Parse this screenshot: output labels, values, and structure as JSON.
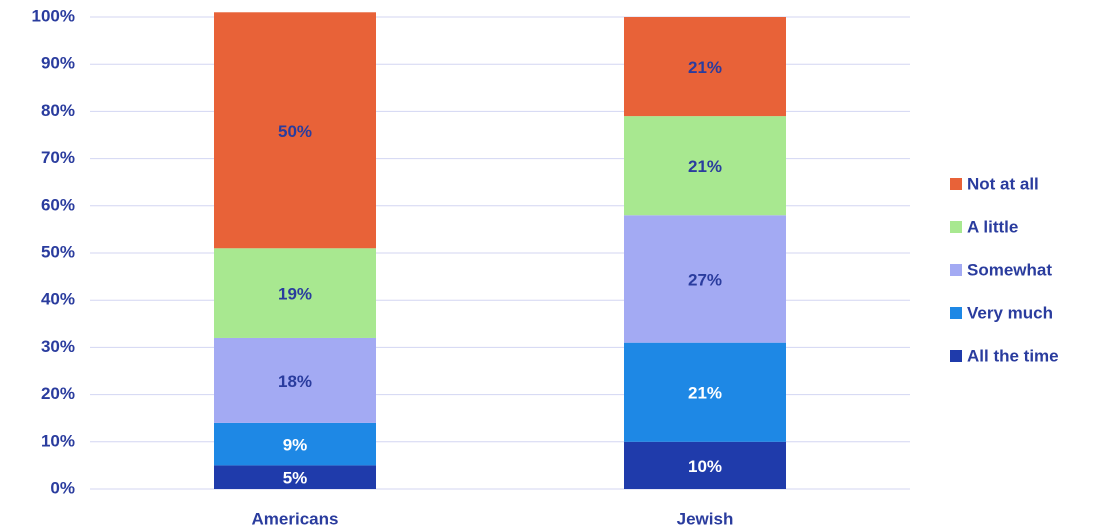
{
  "chart_data": {
    "type": "stacked_bar",
    "categories": [
      "Americans",
      "Jewish"
    ],
    "series": [
      {
        "name": "All the time",
        "color": "#1f3bab",
        "values": [
          5,
          10
        ],
        "value_labels": [
          "5%",
          "10%"
        ]
      },
      {
        "name": "Very much",
        "color": "#1e88e5",
        "values": [
          9,
          21
        ],
        "value_labels": [
          "9%",
          "21%"
        ]
      },
      {
        "name": "Somewhat",
        "color": "#a3aaf3",
        "values": [
          18,
          27
        ],
        "value_labels": [
          "18%",
          "27%"
        ]
      },
      {
        "name": "A little",
        "color": "#a8e890",
        "values": [
          19,
          21
        ],
        "value_labels": [
          "19%",
          "21%"
        ]
      },
      {
        "name": "Not at all",
        "color": "#e86238",
        "values": [
          50,
          21
        ],
        "value_labels": [
          "50%",
          "21%"
        ]
      }
    ],
    "ylim": [
      0,
      100
    ],
    "yticks": [
      {
        "value": 0,
        "label": "0%"
      },
      {
        "value": 10,
        "label": "10%"
      },
      {
        "value": 20,
        "label": "20%"
      },
      {
        "value": 30,
        "label": "30%"
      },
      {
        "value": 40,
        "label": "40%"
      },
      {
        "value": 50,
        "label": "50%"
      },
      {
        "value": 60,
        "label": "60%"
      },
      {
        "value": 70,
        "label": "70%"
      },
      {
        "value": 80,
        "label": "80%"
      },
      {
        "value": 90,
        "label": "90%"
      },
      {
        "value": 100,
        "label": "100%"
      }
    ],
    "grid": true,
    "legend": "right"
  }
}
